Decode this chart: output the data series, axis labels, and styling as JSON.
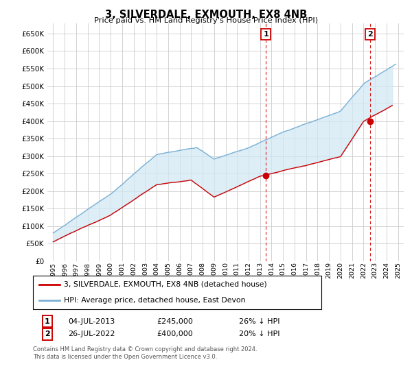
{
  "title": "3, SILVERDALE, EXMOUTH, EX8 4NB",
  "subtitle": "Price paid vs. HM Land Registry's House Price Index (HPI)",
  "ylim": [
    0,
    680000
  ],
  "yticks": [
    0,
    50000,
    100000,
    150000,
    200000,
    250000,
    300000,
    350000,
    400000,
    450000,
    500000,
    550000,
    600000,
    650000
  ],
  "xlim_start": 1994.5,
  "xlim_end": 2025.5,
  "hpi_color": "#7ab0d4",
  "hpi_fill_color": "#d0e8f5",
  "sale_color": "#cc0000",
  "sale1_x": 2013.5,
  "sale1_y": 245000,
  "sale2_x": 2022.58,
  "sale2_y": 400000,
  "legend_line1": "3, SILVERDALE, EXMOUTH, EX8 4NB (detached house)",
  "legend_line2": "HPI: Average price, detached house, East Devon",
  "sale1_label": "1",
  "sale1_date": "04-JUL-2013",
  "sale1_price": "£245,000",
  "sale1_note": "26% ↓ HPI",
  "sale2_label": "2",
  "sale2_date": "26-JUL-2022",
  "sale2_price": "£400,000",
  "sale2_note": "20% ↓ HPI",
  "footer": "Contains HM Land Registry data © Crown copyright and database right 2024.\nThis data is licensed under the Open Government Licence v3.0.",
  "background_color": "#ffffff",
  "grid_color": "#cccccc"
}
